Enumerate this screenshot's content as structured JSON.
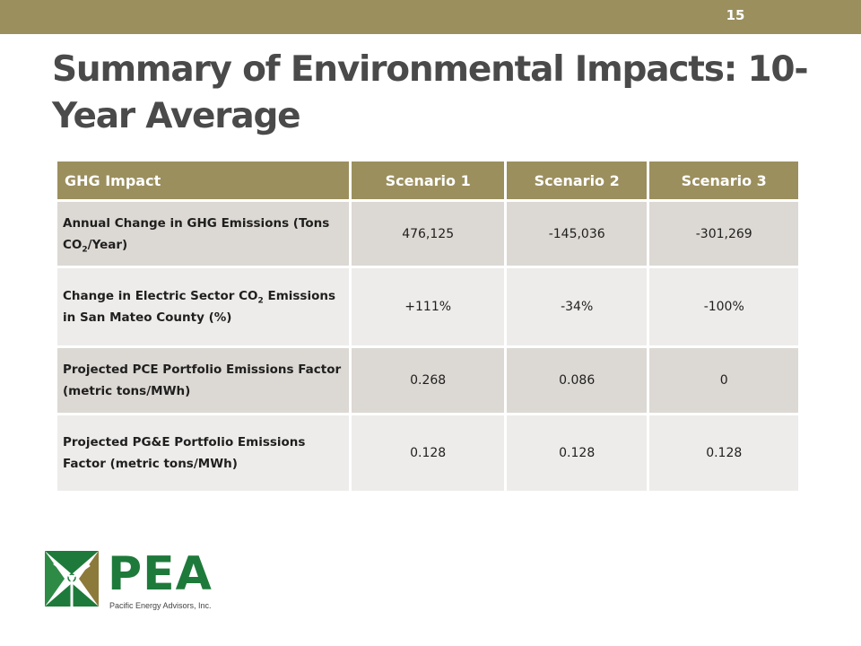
{
  "slide": {
    "number": "15",
    "title": "Summary of Environmental Impacts: 10-Year Average"
  },
  "table": {
    "headers": [
      "GHG Impact",
      "Scenario 1",
      "Scenario 2",
      "Scenario 3"
    ],
    "rows": [
      {
        "label_pre": "Annual Change in GHG Emissions (Tons CO",
        "label_sub": "2",
        "label_post": "/Year)",
        "values": [
          "476,125",
          "-145,036",
          "-301,269"
        ]
      },
      {
        "label_pre": "Change in Electric Sector CO",
        "label_sub": "2",
        "label_post": " Emissions in San Mateo County (%)",
        "values": [
          "+111%",
          "-34%",
          "-100%"
        ]
      },
      {
        "label_pre": "Projected PCE Portfolio Emissions Factor (metric tons/MWh)",
        "label_sub": "",
        "label_post": "",
        "values": [
          "0.268",
          "0.086",
          "0"
        ]
      },
      {
        "label_pre": "Projected PG&E Portfolio Emissions Factor (metric tons/MWh)",
        "label_sub": "",
        "label_post": "",
        "values": [
          "0.128",
          "0.128",
          "0.128"
        ]
      }
    ]
  },
  "logo": {
    "wordmark": "PEA",
    "tagline": "Pacific Energy Advisors, Inc.",
    "icon": "wind-turbine-icon"
  },
  "colors": {
    "accent": "#9b8f5e",
    "row_dark": "#dcd8d3",
    "row_light": "#eeecea",
    "logo_green": "#1e7a3a",
    "title_text": "#4a4a4a"
  }
}
